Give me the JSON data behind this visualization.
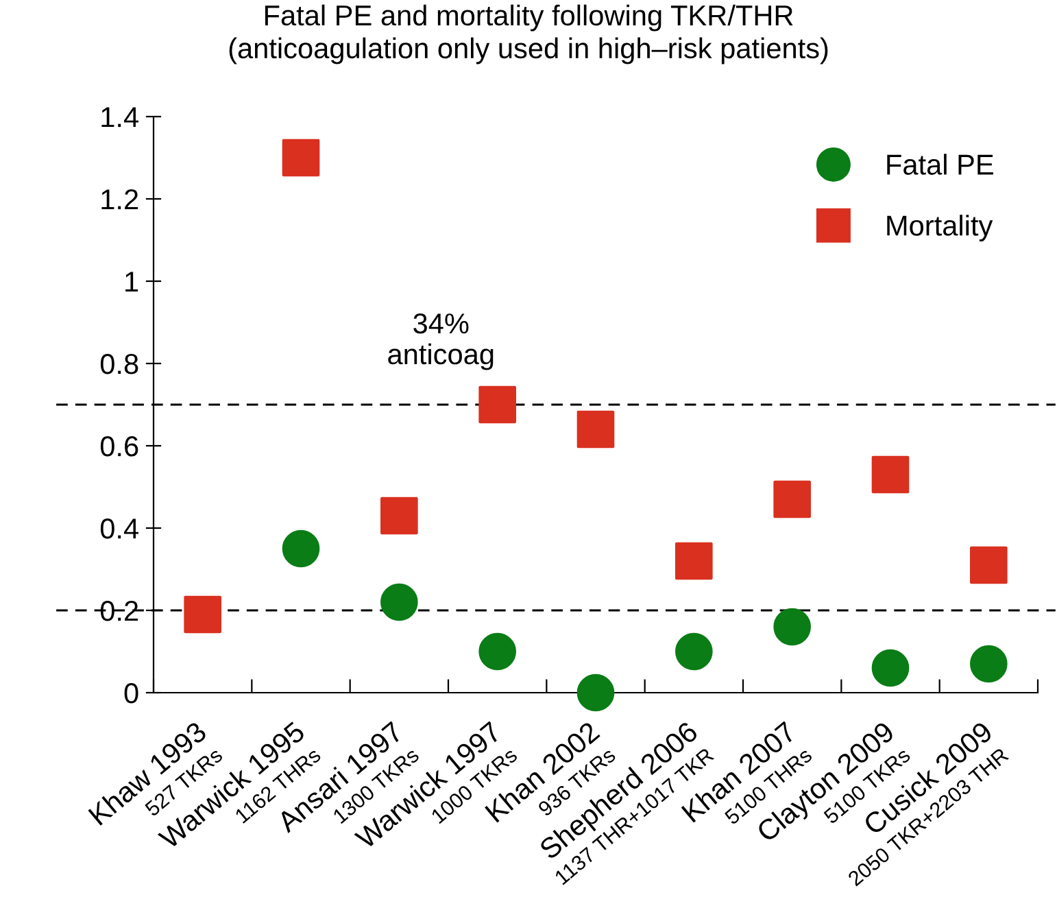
{
  "chart_data": {
    "type": "scatter",
    "title": "Fatal PE and mortality following TKR/THR\n(anticoagulation only used in high–risk patients)",
    "categories": [
      "Khaw 1993\n527 TKRs",
      "Warwick 1995\n1162 THRs",
      "Ansari 1997\n1300 TKRs",
      "Warwick 1997\n1000 TKRs",
      "Khan 2002\n936 TKRs",
      "Shepherd 2006\n1137 THR+1017 TKR",
      "Khan 2007\n5100 THRs",
      "Clayton 2009\n5100 TKRs",
      "Cusick 2009\n2050 TKR+2203 THR"
    ],
    "series": [
      {
        "name": "Fatal PE",
        "color": "#0a7d16",
        "marker": "circle",
        "values": [
          null,
          0.35,
          0.22,
          0.1,
          0,
          0.1,
          0.16,
          0.06,
          0.07
        ]
      },
      {
        "name": "Mortality",
        "color": "#d93020",
        "marker": "square",
        "values": [
          0.19,
          1.3,
          0.43,
          0.7,
          0.64,
          0.32,
          0.47,
          0.53,
          0.31
        ]
      }
    ],
    "ylim": [
      0,
      1.4
    ],
    "yticks": [
      0,
      0.2,
      0.4,
      0.6,
      0.8,
      1,
      1.2,
      1.4
    ],
    "ref_lines": [
      {
        "axis": "y",
        "value": 0.7,
        "line_style": "dashed",
        "color": "#000000"
      },
      {
        "axis": "y",
        "value": 0.2,
        "line_style": "dashed",
        "color": "#000000"
      }
    ],
    "annotations": [
      "34%\nanticoag"
    ],
    "legend": "top right",
    "grid": false
  }
}
